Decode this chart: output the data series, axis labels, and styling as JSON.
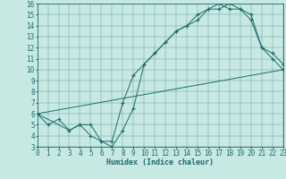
{
  "xlabel": "Humidex (Indice chaleur)",
  "bg_color": "#c8e8e4",
  "line_color": "#1a6b6b",
  "xlim": [
    0,
    23
  ],
  "ylim": [
    3,
    16
  ],
  "xticks": [
    0,
    1,
    2,
    3,
    4,
    5,
    6,
    7,
    8,
    9,
    10,
    11,
    12,
    13,
    14,
    15,
    16,
    17,
    18,
    19,
    20,
    21,
    22,
    23
  ],
  "yticks": [
    3,
    4,
    5,
    6,
    7,
    8,
    9,
    10,
    11,
    12,
    13,
    14,
    15,
    16
  ],
  "line1_x": [
    0,
    1,
    2,
    3,
    4,
    5,
    6,
    7,
    8,
    9,
    10,
    11,
    12,
    13,
    14,
    15,
    16,
    17,
    18,
    19,
    20,
    21,
    22,
    23
  ],
  "line1_y": [
    6,
    5,
    5.5,
    4.5,
    5,
    4,
    3.5,
    3,
    4.5,
    6.5,
    10.5,
    11.5,
    12.5,
    13.5,
    14,
    14.5,
    15.5,
    15.5,
    16,
    15.5,
    15,
    12,
    11,
    10
  ],
  "line2_x": [
    0,
    3,
    4,
    5,
    6,
    7,
    8,
    9,
    10,
    11,
    12,
    13,
    14,
    15,
    16,
    17,
    18,
    19,
    20,
    21,
    22,
    23
  ],
  "line2_y": [
    6,
    4.5,
    5,
    5,
    3.5,
    3.5,
    7,
    9.5,
    10.5,
    11.5,
    12.5,
    13.5,
    14,
    15,
    15.5,
    16,
    15.5,
    15.5,
    14.5,
    12,
    11.5,
    10.5
  ],
  "line3_x": [
    0,
    23
  ],
  "line3_y": [
    6,
    10
  ],
  "xlabel_fontsize": 6,
  "tick_fontsize": 5.5
}
